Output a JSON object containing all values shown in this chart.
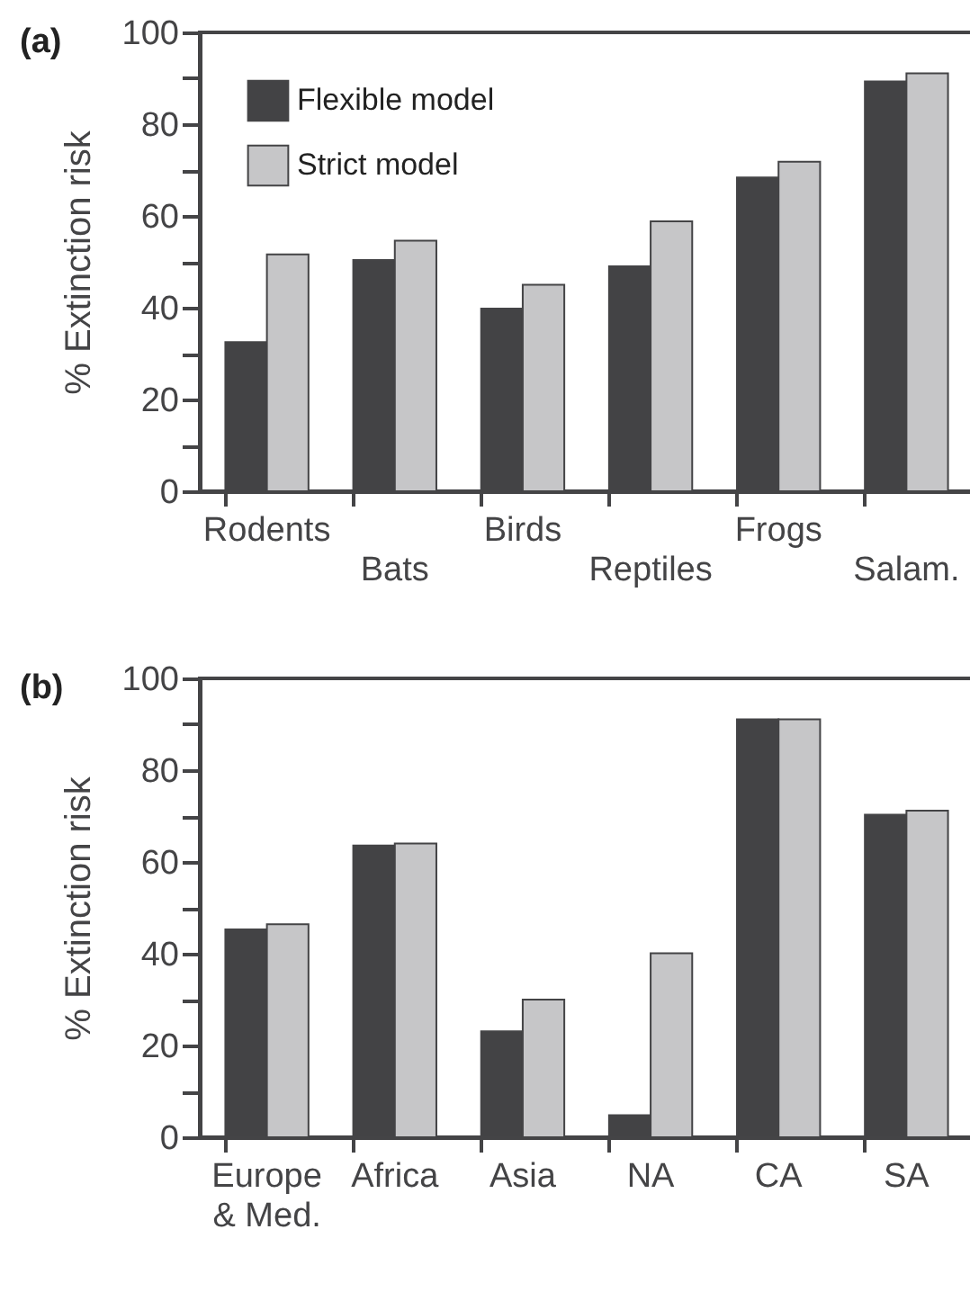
{
  "chart_data": [
    {
      "type": "bar",
      "title": "(a)",
      "ylabel": "% Extinction risk",
      "categories": [
        "Rodents",
        "Bats",
        "Birds",
        "Reptiles",
        "Frogs",
        "Salam."
      ],
      "series": [
        {
          "name": "Flexible model",
          "color": "#434345",
          "values": [
            32.5,
            50.4,
            39.8,
            49,
            68.4,
            89.3
          ]
        },
        {
          "name": "Strict model",
          "color": "#c6c6c8",
          "values": [
            51.6,
            54.6,
            45,
            58.8,
            71.8,
            91.1
          ]
        }
      ],
      "ylim": [
        0,
        100
      ],
      "yticks": [
        0,
        {
          "value": 10,
          "label": null
        },
        20,
        {
          "value": 30,
          "label": null
        },
        40,
        {
          "value": 50,
          "label": null
        },
        60,
        {
          "value": 70,
          "label": null
        },
        80,
        {
          "value": 90,
          "label": null
        },
        100
      ],
      "legend": "top left",
      "grid": false
    },
    {
      "type": "bar",
      "title": "(b)",
      "ylabel": "% Extinction risk",
      "categories": [
        "Europe & Med.",
        "Africa",
        "Asia",
        "NA",
        "CA",
        "SA"
      ],
      "series": [
        {
          "color": "#434345",
          "values": [
            45.3,
            63.6,
            23.1,
            4.8,
            91.1,
            70.3
          ]
        },
        {
          "color": "#c6c6c8",
          "values": [
            46.4,
            64,
            30,
            40.1,
            91.1,
            71.2
          ]
        }
      ],
      "ylim": [
        0,
        100
      ],
      "yticks": [
        0,
        {
          "value": 10,
          "label": null
        },
        20,
        {
          "value": 30,
          "label": null
        },
        40,
        {
          "value": 50,
          "label": null
        },
        60,
        {
          "value": 70,
          "label": null
        },
        80,
        {
          "value": 90,
          "label": null
        },
        100
      ],
      "grid": false
    }
  ]
}
